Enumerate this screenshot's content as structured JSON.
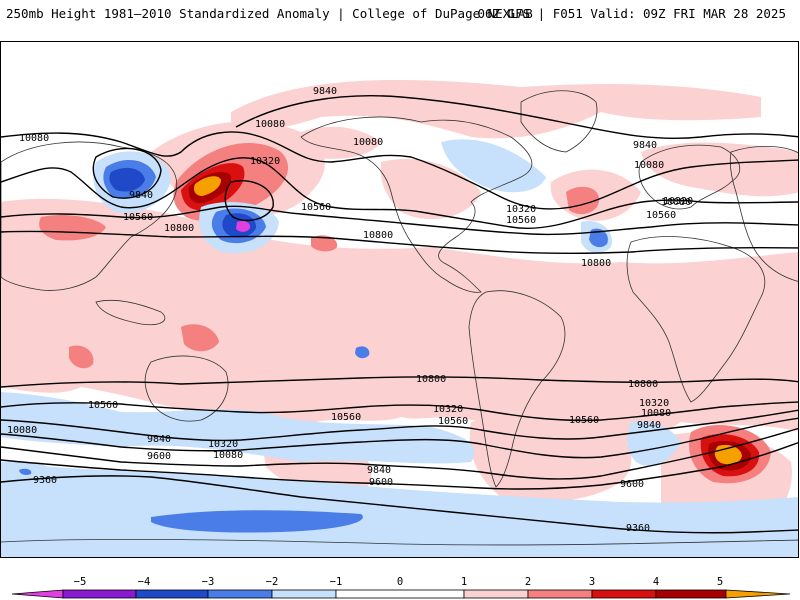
{
  "header": {
    "title_left": "250mb Height 1981–2010 Standardized Anomaly | College of DuPage NEXLAB",
    "title_right": "06Z GFS | F051 Valid: 09Z FRI MAR 28 2025"
  },
  "colors": {
    "neg5": "#e040e0",
    "neg4": "#8a1ad0",
    "neg3": "#1f49c8",
    "neg2": "#4a7de8",
    "neg1": "#c7e0fb",
    "zero": "#ffffff",
    "pos1": "#fbd1d1",
    "pos2": "#f48080",
    "pos3": "#d81010",
    "pos4": "#a80000",
    "pos5": "#f6a000",
    "contour": "#000000",
    "border": "#333333"
  },
  "colorbar": {
    "ticks": [
      "−5",
      "−4",
      "−3",
      "−2",
      "−1",
      "0",
      "1",
      "2",
      "3",
      "4",
      "5"
    ]
  },
  "contour_labels": [
    "9840",
    "10080",
    "10080",
    "10320",
    "10080",
    "9840",
    "10560",
    "10800",
    "10560",
    "10080",
    "10320",
    "10560",
    "9840",
    "10080",
    "10320",
    "10560",
    "10800",
    "10800",
    "10800",
    "10560",
    "10560",
    "10800",
    "10320",
    "10560",
    "10560",
    "10320",
    "10080",
    "9840",
    "10080",
    "9840",
    "10320",
    "9600",
    "10080",
    "9840",
    "9360",
    "9600",
    "9600",
    "9360"
  ]
}
